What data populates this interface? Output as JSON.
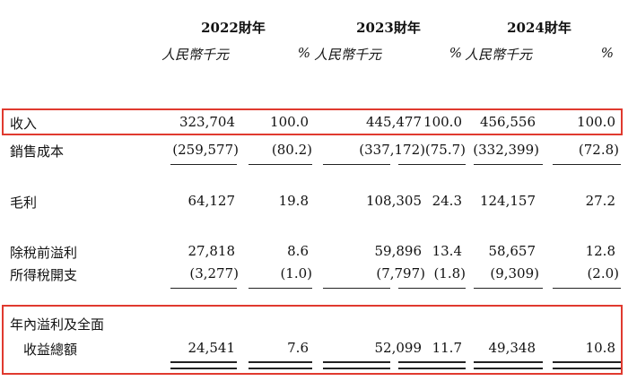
{
  "header": {
    "years": [
      "2022財年",
      "2023財年",
      "2024財年"
    ],
    "unit_label": "人民幣千元",
    "pct_label": "%"
  },
  "rows": [
    {
      "label": "收入",
      "values": [
        "323,704",
        "100.0",
        "445,477",
        "100.0",
        "456,556",
        "100.0"
      ]
    },
    {
      "label": "銷售成本",
      "values": [
        "(259,577)",
        "(80.2)",
        "(337,172)",
        "(75.7)",
        "(332,399)",
        "(72.8)"
      ]
    },
    {
      "label": "毛利",
      "values": [
        "64,127",
        "19.8",
        "108,305",
        "24.3",
        "124,157",
        "27.2"
      ]
    },
    {
      "label": "除稅前溢利",
      "values": [
        "27,818",
        "8.6",
        "59,896",
        "13.4",
        "58,657",
        "12.8"
      ]
    },
    {
      "label": "所得稅開支",
      "values": [
        "(3,277)",
        "(1.0)",
        "(7,797)",
        "(1.8)",
        "(9,309)",
        "(2.0)"
      ]
    },
    {
      "label": "年內溢利及全面",
      "values": []
    },
    {
      "label": "收益總額",
      "values": [
        "24,541",
        "7.6",
        "52,099",
        "11.7",
        "49,348",
        "10.8"
      ]
    }
  ],
  "colors": {
    "highlight": "#e03a2f"
  }
}
